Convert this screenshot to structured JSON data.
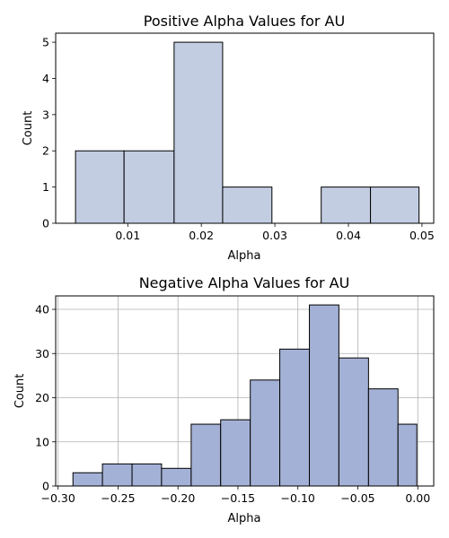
{
  "chart_data": [
    {
      "type": "histogram",
      "title": "Positive Alpha Values for AU",
      "xlabel": "Alpha",
      "ylabel": "Count",
      "xlim": [
        0.0002,
        0.0516
      ],
      "ylim": [
        0,
        5.25
      ],
      "xticks": [
        0.01,
        0.02,
        0.03,
        0.04,
        0.05
      ],
      "xtick_labels": [
        "0.01",
        "0.02",
        "0.03",
        "0.04",
        "0.05"
      ],
      "yticks": [
        0,
        1,
        2,
        3,
        4,
        5
      ],
      "ytick_labels": [
        "0",
        "1",
        "2",
        "3",
        "4",
        "5"
      ],
      "grid": false,
      "bar_color": "#c2cde2",
      "edge_color": "#000000",
      "bins": [
        {
          "x0": 0.0029,
          "x1": 0.0095,
          "count": 2
        },
        {
          "x0": 0.0095,
          "x1": 0.0163,
          "count": 2
        },
        {
          "x0": 0.0163,
          "x1": 0.0229,
          "count": 5
        },
        {
          "x0": 0.0229,
          "x1": 0.0296,
          "count": 1
        },
        {
          "x0": 0.0296,
          "x1": 0.0363,
          "count": 0
        },
        {
          "x0": 0.0363,
          "x1": 0.043,
          "count": 1
        },
        {
          "x0": 0.043,
          "x1": 0.0496,
          "count": 1
        }
      ]
    },
    {
      "type": "histogram",
      "title": "Negative Alpha Values for AU",
      "xlabel": "Alpha",
      "ylabel": "Count",
      "xlim": [
        -0.302,
        0.0133
      ],
      "ylim": [
        0,
        43.05
      ],
      "xticks": [
        -0.3,
        -0.25,
        -0.2,
        -0.15,
        -0.1,
        -0.05,
        0.0
      ],
      "xtick_labels": [
        "−0.30",
        "−0.25",
        "−0.20",
        "−0.15",
        "−0.10",
        "−0.05",
        "0.00"
      ],
      "yticks": [
        0,
        10,
        20,
        30,
        40
      ],
      "ytick_labels": [
        "0",
        "10",
        "20",
        "30",
        "40"
      ],
      "grid": true,
      "bar_color": "#a4b1d6",
      "edge_color": "#000000",
      "bins": [
        {
          "x0": -0.2876,
          "x1": -0.263,
          "count": 3
        },
        {
          "x0": -0.263,
          "x1": -0.2383,
          "count": 5
        },
        {
          "x0": -0.2383,
          "x1": -0.2137,
          "count": 5
        },
        {
          "x0": -0.2137,
          "x1": -0.189,
          "count": 4
        },
        {
          "x0": -0.189,
          "x1": -0.1644,
          "count": 14
        },
        {
          "x0": -0.1644,
          "x1": -0.1397,
          "count": 15
        },
        {
          "x0": -0.1397,
          "x1": -0.1151,
          "count": 24
        },
        {
          "x0": -0.1151,
          "x1": -0.0904,
          "count": 31
        },
        {
          "x0": -0.0904,
          "x1": -0.0658,
          "count": 41
        },
        {
          "x0": -0.0658,
          "x1": -0.0411,
          "count": 29
        },
        {
          "x0": -0.0411,
          "x1": -0.0165,
          "count": 22
        },
        {
          "x0": -0.0165,
          "x1": -0.0008,
          "count": 14
        }
      ]
    }
  ]
}
